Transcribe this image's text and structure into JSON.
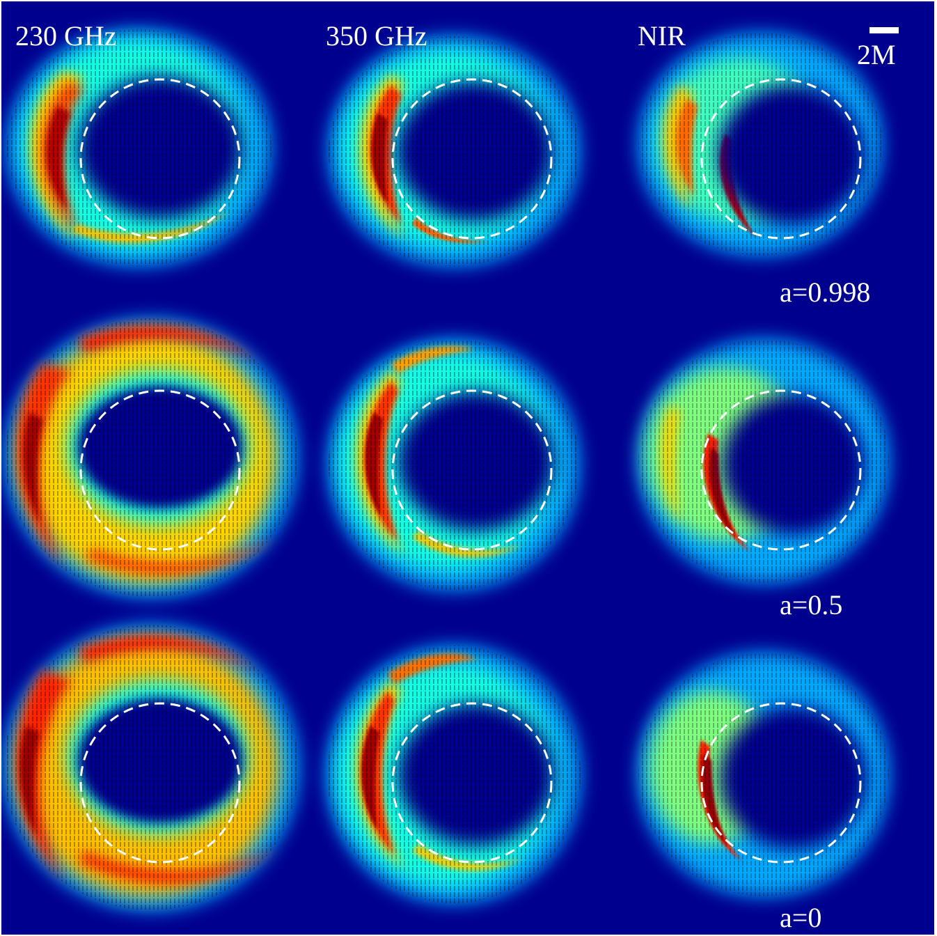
{
  "figure": {
    "column_labels": [
      "230 GHz",
      "350 GHz",
      "NIR"
    ],
    "scale_bar": {
      "label": "2M"
    },
    "row_labels": [
      "a=0.998",
      "a=0.5",
      "a=0"
    ],
    "colormap": "jet",
    "background_color": "#00008e",
    "photon_ring_style": "white dashed circle"
  }
}
